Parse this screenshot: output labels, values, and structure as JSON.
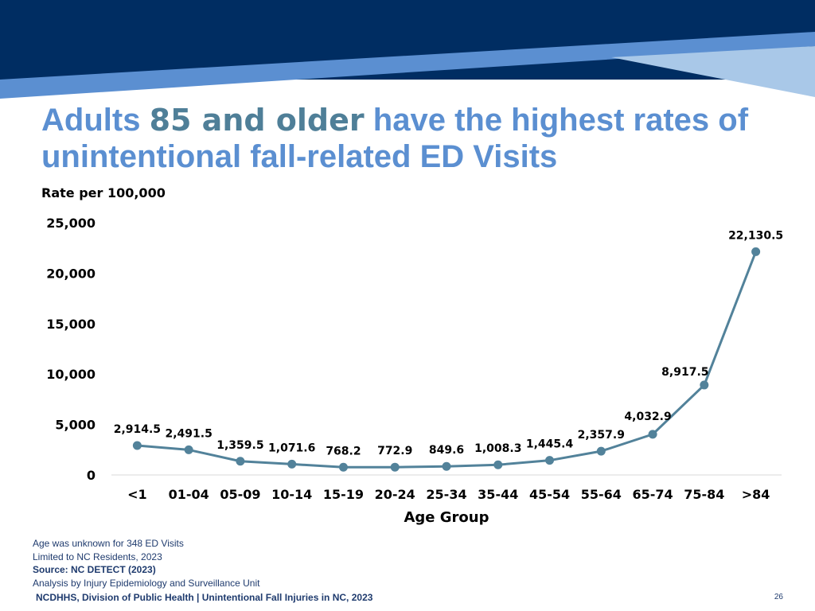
{
  "header": {
    "title_part1": "Adults",
    "title_highlight": "85 and older",
    "title_part2": "have the highest rates of unintentional fall-related ED Visits"
  },
  "colors": {
    "banner_dark": "#002d62",
    "banner_mid": "#5b8fd1",
    "banner_light": "#a9c8e8",
    "title": "#5b8fd1",
    "title_highlight": "#4f7f98",
    "line": "#52829a",
    "footer_text": "#1f3b6e"
  },
  "chart_data": {
    "type": "line",
    "ylabel": "Rate per 100,000",
    "xlabel": "Age Group",
    "ylim": [
      0,
      25000
    ],
    "yticks": [
      "0",
      "5,000",
      "10,000",
      "15,000",
      "20,000",
      "25,000"
    ],
    "ytick_values": [
      0,
      5000,
      10000,
      15000,
      20000,
      25000
    ],
    "grid": false,
    "categories": [
      "<1",
      "01-04",
      "05-09",
      "10-14",
      "15-19",
      "20-24",
      "25-34",
      "35-44",
      "45-54",
      "55-64",
      "65-74",
      "75-84",
      ">84"
    ],
    "values": [
      2914.5,
      2491.5,
      1359.5,
      1071.6,
      768.2,
      772.9,
      849.6,
      1008.3,
      1445.4,
      2357.9,
      4032.9,
      8917.5,
      22130.5
    ],
    "labels": [
      "2,914.5",
      "2,491.5",
      "1,359.5",
      "1,071.6",
      "768.2",
      "772.9",
      "849.6",
      "1,008.3",
      "1,445.4",
      "2,357.9",
      "4,032.9",
      "8,917.5",
      "22,130.5"
    ]
  },
  "notes": {
    "line1": "Age was unknown for 348 ED Visits",
    "line2": "Limited to NC Residents, 2023",
    "source": "Source: NC DETECT (2023)",
    "line4": "Analysis by Injury Epidemiology and Surveillance Unit"
  },
  "footer": {
    "text": "NCDHHS, Division of Public Health | Unintentional Fall Injuries in NC, 2023",
    "page_number": "26"
  }
}
